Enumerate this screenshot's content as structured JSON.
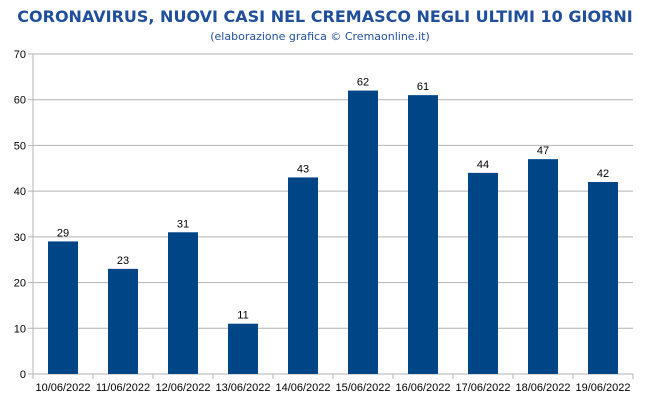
{
  "chart_data": {
    "type": "bar",
    "title": "CORONAVIRUS, NUOVI CASI NEL CREMASCO NEGLI ULTIMI 10 GIORNI",
    "subtitle": "(elaborazione grafica © Cremaonline.it)",
    "categories": [
      "10/06/2022",
      "11/06/2022",
      "12/06/2022",
      "13/06/2022",
      "14/06/2022",
      "15/06/2022",
      "16/06/2022",
      "17/06/2022",
      "18/06/2022",
      "19/06/2022"
    ],
    "values": [
      29,
      23,
      31,
      11,
      43,
      62,
      61,
      44,
      47,
      42
    ],
    "ylim": [
      0,
      70
    ],
    "yticks": [
      0,
      10,
      20,
      30,
      40,
      50,
      60,
      70
    ],
    "grid": true,
    "bar_color": "#004586",
    "title_color": "#1f4e9a"
  }
}
